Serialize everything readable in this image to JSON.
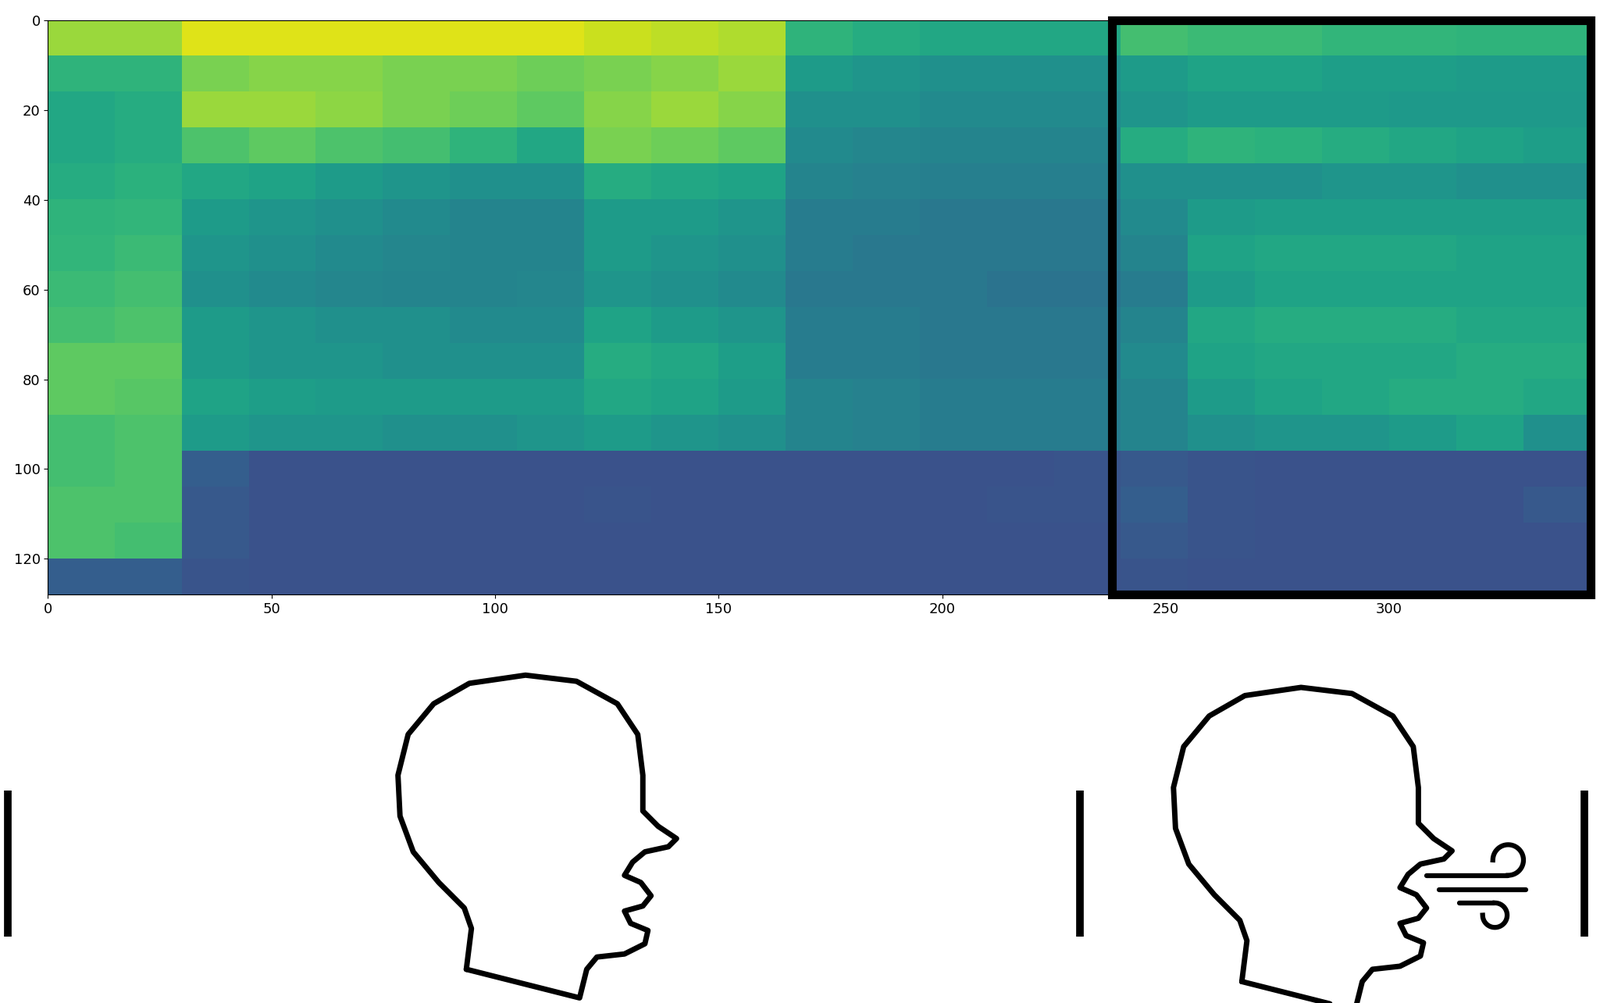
{
  "chart_data": {
    "type": "heatmap",
    "color": "viridis",
    "color_range": [
      0,
      1
    ],
    "xlim": [
      0,
      345
    ],
    "ylim": [
      128,
      0
    ],
    "xticks": [
      0,
      50,
      100,
      150,
      200,
      250,
      300
    ],
    "yticks": [
      0,
      20,
      40,
      60,
      80,
      100,
      120
    ],
    "cells": [
      [
        0.85,
        0.85,
        0.95,
        0.95,
        0.95,
        0.95,
        0.95,
        0.95,
        0.92,
        0.9,
        0.88,
        0.65,
        0.62,
        0.6,
        0.6,
        0.6,
        0.7,
        0.68,
        0.68,
        0.66,
        0.66,
        0.65,
        0.65
      ],
      [
        0.65,
        0.65,
        0.8,
        0.82,
        0.82,
        0.8,
        0.8,
        0.78,
        0.8,
        0.82,
        0.85,
        0.55,
        0.52,
        0.5,
        0.5,
        0.5,
        0.55,
        0.58,
        0.58,
        0.56,
        0.56,
        0.55,
        0.55
      ],
      [
        0.6,
        0.62,
        0.85,
        0.85,
        0.83,
        0.8,
        0.78,
        0.75,
        0.82,
        0.85,
        0.82,
        0.5,
        0.5,
        0.48,
        0.48,
        0.48,
        0.52,
        0.55,
        0.55,
        0.55,
        0.54,
        0.54,
        0.54
      ],
      [
        0.6,
        0.62,
        0.72,
        0.75,
        0.72,
        0.7,
        0.65,
        0.6,
        0.8,
        0.78,
        0.75,
        0.48,
        0.46,
        0.45,
        0.45,
        0.45,
        0.62,
        0.65,
        0.64,
        0.62,
        0.6,
        0.58,
        0.56
      ],
      [
        0.62,
        0.64,
        0.6,
        0.58,
        0.55,
        0.52,
        0.5,
        0.5,
        0.62,
        0.6,
        0.58,
        0.45,
        0.44,
        0.43,
        0.43,
        0.43,
        0.5,
        0.5,
        0.5,
        0.52,
        0.52,
        0.5,
        0.5
      ],
      [
        0.65,
        0.66,
        0.55,
        0.52,
        0.5,
        0.48,
        0.45,
        0.45,
        0.55,
        0.55,
        0.52,
        0.42,
        0.42,
        0.4,
        0.4,
        0.4,
        0.48,
        0.55,
        0.56,
        0.56,
        0.56,
        0.56,
        0.56
      ],
      [
        0.66,
        0.68,
        0.52,
        0.5,
        0.48,
        0.46,
        0.45,
        0.45,
        0.55,
        0.52,
        0.5,
        0.42,
        0.4,
        0.4,
        0.4,
        0.4,
        0.45,
        0.58,
        0.6,
        0.6,
        0.6,
        0.58,
        0.58
      ],
      [
        0.68,
        0.7,
        0.5,
        0.48,
        0.46,
        0.45,
        0.45,
        0.46,
        0.52,
        0.5,
        0.48,
        0.4,
        0.4,
        0.4,
        0.38,
        0.38,
        0.42,
        0.55,
        0.58,
        0.58,
        0.58,
        0.58,
        0.58
      ],
      [
        0.7,
        0.72,
        0.55,
        0.52,
        0.5,
        0.5,
        0.48,
        0.48,
        0.58,
        0.55,
        0.52,
        0.42,
        0.42,
        0.4,
        0.4,
        0.4,
        0.45,
        0.6,
        0.62,
        0.62,
        0.62,
        0.6,
        0.6
      ],
      [
        0.75,
        0.75,
        0.55,
        0.52,
        0.52,
        0.5,
        0.5,
        0.5,
        0.62,
        0.6,
        0.56,
        0.42,
        0.42,
        0.4,
        0.4,
        0.4,
        0.48,
        0.58,
        0.6,
        0.6,
        0.6,
        0.62,
        0.62
      ],
      [
        0.75,
        0.74,
        0.58,
        0.56,
        0.55,
        0.55,
        0.55,
        0.55,
        0.6,
        0.58,
        0.55,
        0.45,
        0.44,
        0.42,
        0.42,
        0.42,
        0.45,
        0.55,
        0.58,
        0.6,
        0.62,
        0.62,
        0.6
      ],
      [
        0.7,
        0.72,
        0.55,
        0.52,
        0.52,
        0.5,
        0.5,
        0.52,
        0.55,
        0.52,
        0.5,
        0.45,
        0.44,
        0.42,
        0.42,
        0.42,
        0.45,
        0.5,
        0.52,
        0.52,
        0.55,
        0.58,
        0.5
      ],
      [
        0.7,
        0.72,
        0.3,
        0.25,
        0.25,
        0.25,
        0.25,
        0.25,
        0.25,
        0.25,
        0.25,
        0.25,
        0.25,
        0.25,
        0.25,
        0.26,
        0.28,
        0.26,
        0.25,
        0.25,
        0.25,
        0.25,
        0.25
      ],
      [
        0.72,
        0.72,
        0.28,
        0.25,
        0.25,
        0.25,
        0.25,
        0.25,
        0.26,
        0.25,
        0.25,
        0.25,
        0.25,
        0.25,
        0.26,
        0.26,
        0.3,
        0.26,
        0.25,
        0.25,
        0.25,
        0.25,
        0.28
      ],
      [
        0.72,
        0.7,
        0.28,
        0.25,
        0.25,
        0.25,
        0.25,
        0.25,
        0.25,
        0.25,
        0.25,
        0.25,
        0.25,
        0.25,
        0.25,
        0.25,
        0.28,
        0.26,
        0.25,
        0.25,
        0.25,
        0.25,
        0.25
      ],
      [
        0.3,
        0.3,
        0.26,
        0.25,
        0.25,
        0.25,
        0.25,
        0.25,
        0.25,
        0.25,
        0.25,
        0.25,
        0.25,
        0.25,
        0.25,
        0.25,
        0.26,
        0.25,
        0.25,
        0.25,
        0.25,
        0.25,
        0.25
      ]
    ]
  }
}
